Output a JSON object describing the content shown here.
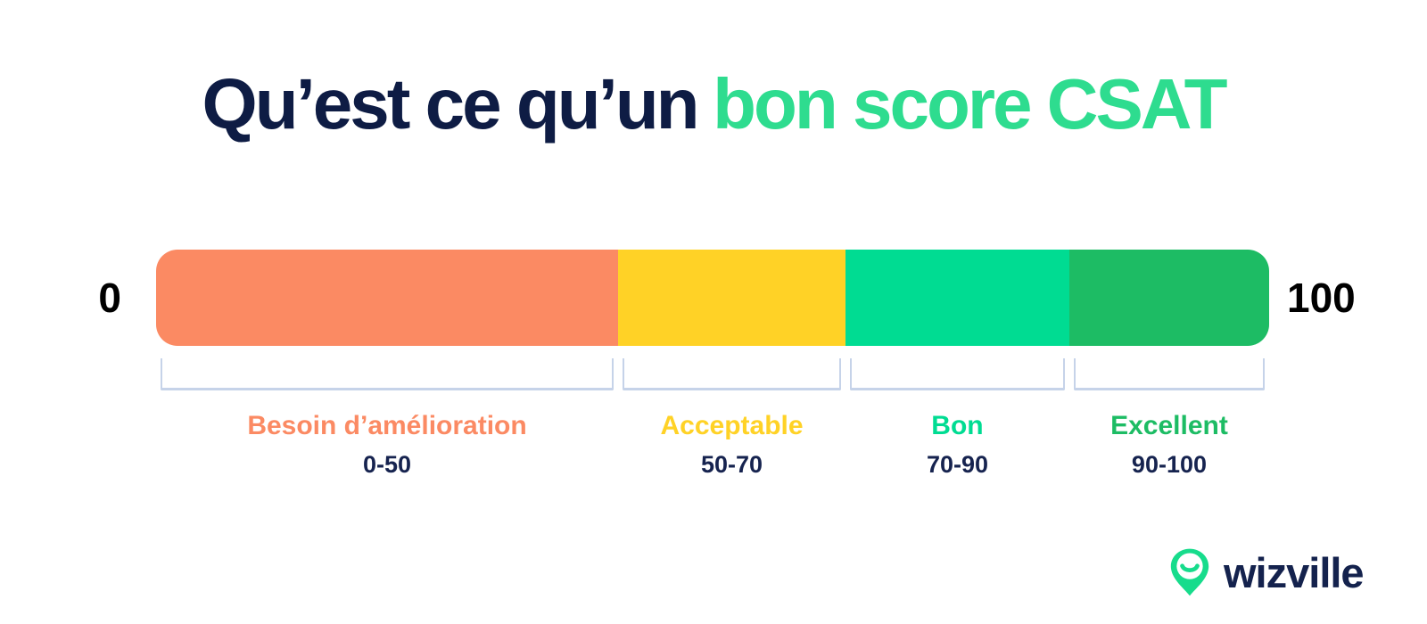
{
  "title": {
    "part1": "Qu’est ce qu’un",
    "part2": "bon score CSAT"
  },
  "axis": {
    "min": "0",
    "max": "100"
  },
  "chart_data": {
    "type": "bar",
    "subtype": "horizontal-scale",
    "title": "Qu’est ce qu’un bon score CSAT",
    "range": [
      0,
      100
    ],
    "legend_position": "below",
    "segments": [
      {
        "key": "needs-improvement",
        "label": "Besoin d’amélioration",
        "range_label": "0-50",
        "from": 0,
        "to": 50,
        "color": "#fb8a63",
        "width_pct": 41.51
      },
      {
        "key": "acceptable",
        "label": "Acceptable",
        "range_label": "50-70",
        "from": 50,
        "to": 70,
        "color": "#ffd226",
        "width_pct": 20.43
      },
      {
        "key": "good",
        "label": "Bon",
        "range_label": "70-90",
        "from": 70,
        "to": 90,
        "color": "#00dc92",
        "width_pct": 20.11
      },
      {
        "key": "excellent",
        "label": "Excellent",
        "range_label": "90-100",
        "from": 90,
        "to": 100,
        "color": "#1dbc64",
        "width_pct": 17.95
      }
    ]
  },
  "colors": {
    "title_navy": "#0e1c44",
    "title_green": "#2edc8f",
    "axis_black": "#000000",
    "range_navy": "#16234f",
    "bracket_blue": "#c6d3e9",
    "logo_green": "#17dc8c",
    "logo_navy": "#14224d",
    "background": "#ffffff"
  },
  "logo": {
    "text": "wizville",
    "icon": "smile-pin-icon"
  }
}
